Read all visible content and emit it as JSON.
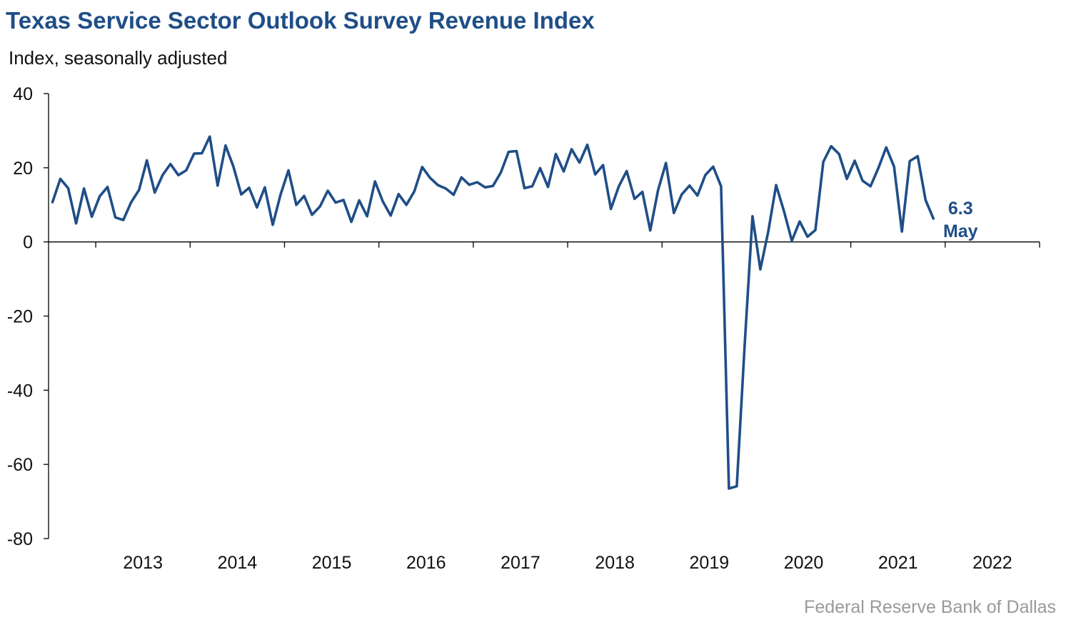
{
  "chart_data": {
    "type": "line",
    "title": "Texas Service Sector Outlook Survey Revenue Index",
    "ylabel": "Index, seasonally adjusted",
    "xlabel": "",
    "source": "Federal Reserve Bank of Dallas",
    "ylim": [
      -80,
      40
    ],
    "yticks": [
      "40",
      "20",
      "0",
      "-20",
      "-40",
      "-60",
      "-80"
    ],
    "ytick_values": [
      40,
      20,
      0,
      -20,
      -40,
      -60,
      -80
    ],
    "xticks": [
      "2013",
      "2014",
      "2015",
      "2016",
      "2017",
      "2018",
      "2019",
      "2020",
      "2021",
      "2022"
    ],
    "x_start": "2012-07",
    "x_end": "2022-05",
    "grid": false,
    "color": "#1f4e87",
    "annotation": {
      "value": "6.3",
      "label": "May"
    },
    "series": [
      {
        "values": [
          10.7,
          17.0,
          14.5,
          5.0,
          14.4,
          6.8,
          12.3,
          14.8,
          6.6,
          5.9,
          10.7,
          14.0,
          22.0,
          13.3,
          18.0,
          21.0,
          18.0,
          19.3,
          23.8,
          23.9,
          28.4,
          15.2,
          26.0,
          20.3,
          12.8,
          14.6,
          9.3,
          14.7,
          4.6,
          12.8,
          19.3,
          10.0,
          12.4,
          7.3,
          9.5,
          13.8,
          10.6,
          11.3,
          5.4,
          11.2,
          6.9,
          16.3,
          10.9,
          7.1,
          12.9,
          10.0,
          13.6,
          20.2,
          17.3,
          15.3,
          14.4,
          12.7,
          17.4,
          15.4,
          16.1,
          14.7,
          15.1,
          18.7,
          24.3,
          24.5,
          14.5,
          15.0,
          19.9,
          14.8,
          23.7,
          19.0,
          25.0,
          21.4,
          26.2,
          18.2,
          20.7,
          8.9,
          15.0,
          19.1,
          11.6,
          13.5,
          3.1,
          14.0,
          21.3,
          7.8,
          12.8,
          15.2,
          12.5,
          18.0,
          20.3,
          15.0,
          -66.5,
          -65.9,
          -28.0,
          6.9,
          -7.4,
          2.8,
          15.3,
          8.3,
          0.3,
          5.5,
          1.4,
          3.2,
          21.6,
          25.8,
          23.7,
          17.0,
          21.9,
          16.5,
          15.0,
          19.9,
          25.5,
          20.3,
          2.8,
          21.8,
          23.1,
          11.3,
          6.3
        ]
      }
    ]
  }
}
